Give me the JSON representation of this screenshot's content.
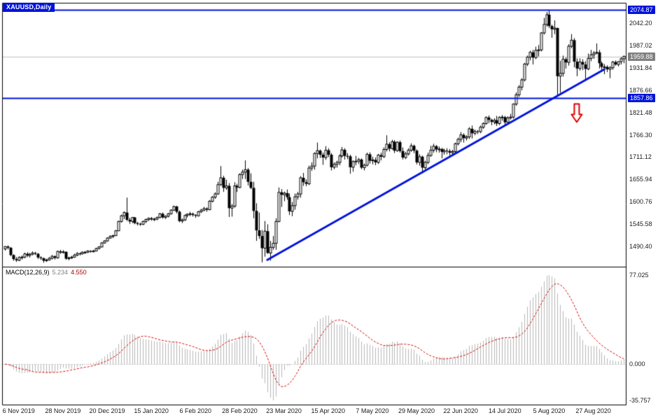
{
  "window": {
    "symbol_label": "XAUUSD,Daily"
  },
  "indicator_label": {
    "name": "MACD(12,26,9)",
    "main_value": "5.234",
    "signal_value": "4.550"
  },
  "colors": {
    "accent_blue": "#0013d8",
    "arrow_red": "#e00000",
    "signal_red": "#d40000",
    "histogram_gray": "#b6b6b6",
    "bid_line_gray": "#c0c0c0",
    "bid_label_gray": "#808080",
    "candle_outline": "#000000",
    "candle_up_fill": "#ffffff",
    "candle_down_fill": "#000000",
    "panel_border": "#000000"
  },
  "chart_data": {
    "type": "candlestick",
    "title": "XAUUSD,Daily",
    "symbol": "XAUUSD",
    "timeframe": "Daily",
    "x_tick_labels": [
      "6 Nov 2019",
      "28 Nov 2019",
      "20 Dec 2019",
      "15 Jan 2020",
      "6 Feb 2020",
      "28 Feb 2020",
      "23 Mar 2020",
      "15 Apr 2020",
      "7 May 2020",
      "29 May 2020",
      "22 Jun 2020",
      "14 Jul 2020",
      "5 Aug 2020",
      "27 Aug 2020"
    ],
    "x_tick_start_index": 5,
    "x_tick_step": 16,
    "y_axis": {
      "max": 2092.4,
      "min": 1440.2,
      "ticks": [
        2042.2,
        1987.02,
        1931.84,
        1876.66,
        1821.48,
        1766.3,
        1711.12,
        1655.94,
        1600.76,
        1545.58,
        1490.4
      ]
    },
    "special_levels": {
      "resistance": {
        "price": 2074.87,
        "label": "2074.87"
      },
      "bid": {
        "price": 1959.88,
        "label": "1959.88"
      },
      "support": {
        "price": 1857.86,
        "label": "1857.86"
      }
    },
    "trendline": {
      "from_index": 95,
      "from_price": 1457,
      "to_index": 217,
      "to_price": 1928
    },
    "arrow": {
      "index": 207,
      "price": 1820,
      "direction": "down"
    },
    "macd": {
      "fast": 12,
      "slow": 26,
      "signal": 9,
      "axis_labels": [
        "77.025",
        "0.000",
        "-35.757"
      ]
    },
    "candles": [
      [
        1484,
        1491,
        1480,
        1490
      ],
      [
        1490,
        1493,
        1483,
        1487
      ],
      [
        1487,
        1489,
        1466,
        1469
      ],
      [
        1469,
        1471,
        1455,
        1459
      ],
      [
        1459,
        1464,
        1452,
        1456
      ],
      [
        1456,
        1466,
        1454,
        1463
      ],
      [
        1463,
        1468,
        1458,
        1464
      ],
      [
        1464,
        1475,
        1461,
        1472
      ],
      [
        1472,
        1476,
        1464,
        1468
      ],
      [
        1468,
        1474,
        1463,
        1471
      ],
      [
        1471,
        1478,
        1468,
        1474
      ],
      [
        1474,
        1477,
        1469,
        1472
      ],
      [
        1472,
        1474,
        1459,
        1463
      ],
      [
        1463,
        1466,
        1457,
        1461
      ],
      [
        1461,
        1463,
        1450,
        1455
      ],
      [
        1455,
        1460,
        1452,
        1457
      ],
      [
        1457,
        1464,
        1455,
        1461
      ],
      [
        1461,
        1469,
        1458,
        1466
      ],
      [
        1466,
        1468,
        1458,
        1462
      ],
      [
        1462,
        1480,
        1460,
        1478
      ],
      [
        1478,
        1482,
        1472,
        1475
      ],
      [
        1475,
        1481,
        1473,
        1477
      ],
      [
        1477,
        1478,
        1457,
        1460
      ],
      [
        1460,
        1465,
        1456,
        1462
      ],
      [
        1462,
        1467,
        1459,
        1464
      ],
      [
        1464,
        1472,
        1462,
        1469
      ],
      [
        1469,
        1476,
        1466,
        1473
      ],
      [
        1473,
        1475,
        1468,
        1472
      ],
      [
        1472,
        1478,
        1470,
        1476
      ],
      [
        1476,
        1479,
        1472,
        1476
      ],
      [
        1476,
        1481,
        1474,
        1479
      ],
      [
        1479,
        1481,
        1475,
        1477
      ],
      [
        1477,
        1482,
        1476,
        1479
      ],
      [
        1479,
        1487,
        1478,
        1485
      ],
      [
        1485,
        1491,
        1483,
        1489
      ],
      [
        1489,
        1501,
        1488,
        1499
      ],
      [
        1499,
        1506,
        1497,
        1504
      ],
      [
        1504,
        1513,
        1502,
        1511
      ],
      [
        1511,
        1518,
        1509,
        1515
      ],
      [
        1515,
        1519,
        1511,
        1517
      ],
      [
        1517,
        1531,
        1516,
        1529
      ],
      [
        1529,
        1554,
        1528,
        1552
      ],
      [
        1552,
        1569,
        1549,
        1566
      ],
      [
        1566,
        1577,
        1558,
        1574
      ],
      [
        1574,
        1611,
        1553,
        1556
      ],
      [
        1556,
        1561,
        1546,
        1552
      ],
      [
        1552,
        1563,
        1548,
        1562
      ],
      [
        1562,
        1563,
        1545,
        1548
      ],
      [
        1548,
        1551,
        1542,
        1546
      ],
      [
        1546,
        1549,
        1541,
        1545
      ],
      [
        1545,
        1554,
        1543,
        1552
      ],
      [
        1552,
        1559,
        1548,
        1557
      ],
      [
        1557,
        1562,
        1553,
        1560
      ],
      [
        1560,
        1563,
        1554,
        1557
      ],
      [
        1557,
        1561,
        1553,
        1558
      ],
      [
        1558,
        1564,
        1555,
        1562
      ],
      [
        1562,
        1573,
        1560,
        1571
      ],
      [
        1571,
        1574,
        1559,
        1562
      ],
      [
        1562,
        1567,
        1558,
        1565
      ],
      [
        1565,
        1573,
        1562,
        1571
      ],
      [
        1571,
        1582,
        1569,
        1580
      ],
      [
        1580,
        1591,
        1578,
        1589
      ],
      [
        1589,
        1591,
        1572,
        1576
      ],
      [
        1576,
        1579,
        1550,
        1553
      ],
      [
        1553,
        1559,
        1548,
        1556
      ],
      [
        1556,
        1569,
        1553,
        1567
      ],
      [
        1567,
        1572,
        1562,
        1570
      ],
      [
        1570,
        1576,
        1565,
        1571
      ],
      [
        1571,
        1574,
        1564,
        1568
      ],
      [
        1568,
        1570,
        1561,
        1566
      ],
      [
        1566,
        1578,
        1564,
        1576
      ],
      [
        1576,
        1583,
        1573,
        1580
      ],
      [
        1580,
        1588,
        1577,
        1584
      ],
      [
        1584,
        1587,
        1576,
        1581
      ],
      [
        1581,
        1605,
        1580,
        1602
      ],
      [
        1602,
        1615,
        1599,
        1612
      ],
      [
        1612,
        1624,
        1608,
        1620
      ],
      [
        1620,
        1650,
        1618,
        1643
      ],
      [
        1643,
        1689,
        1640,
        1660
      ],
      [
        1660,
        1665,
        1625,
        1635
      ],
      [
        1635,
        1655,
        1630,
        1640
      ],
      [
        1640,
        1647,
        1563,
        1585
      ],
      [
        1585,
        1595,
        1564,
        1590
      ],
      [
        1590,
        1649,
        1586,
        1640
      ],
      [
        1640,
        1645,
        1625,
        1636
      ],
      [
        1636,
        1671,
        1634,
        1668
      ],
      [
        1668,
        1680,
        1657,
        1674
      ],
      [
        1674,
        1703,
        1657,
        1680
      ],
      [
        1680,
        1684,
        1641,
        1650
      ],
      [
        1650,
        1671,
        1632,
        1635
      ],
      [
        1635,
        1650,
        1560,
        1578
      ],
      [
        1578,
        1597,
        1504,
        1530
      ],
      [
        1530,
        1574,
        1509,
        1516
      ],
      [
        1516,
        1531,
        1451,
        1486
      ],
      [
        1486,
        1553,
        1465,
        1528
      ],
      [
        1528,
        1545,
        1472,
        1474
      ],
      [
        1474,
        1504,
        1455,
        1488
      ],
      [
        1488,
        1516,
        1482,
        1498
      ],
      [
        1498,
        1560,
        1482,
        1552
      ],
      [
        1552,
        1636,
        1550,
        1624
      ],
      [
        1624,
        1632,
        1588,
        1618
      ],
      [
        1618,
        1626,
        1602,
        1622
      ],
      [
        1622,
        1631,
        1606,
        1612
      ],
      [
        1612,
        1621,
        1568,
        1577
      ],
      [
        1577,
        1600,
        1565,
        1591
      ],
      [
        1591,
        1621,
        1581,
        1613
      ],
      [
        1613,
        1625,
        1606,
        1620
      ],
      [
        1620,
        1664,
        1611,
        1660
      ],
      [
        1660,
        1672,
        1640,
        1649
      ],
      [
        1649,
        1656,
        1639,
        1645
      ],
      [
        1645,
        1690,
        1642,
        1684
      ],
      [
        1684,
        1698,
        1677,
        1689
      ],
      [
        1689,
        1723,
        1680,
        1720
      ],
      [
        1720,
        1747,
        1708,
        1727
      ],
      [
        1727,
        1730,
        1709,
        1717
      ],
      [
        1717,
        1722,
        1692,
        1710
      ],
      [
        1710,
        1738,
        1704,
        1728
      ],
      [
        1728,
        1733,
        1711,
        1717
      ],
      [
        1717,
        1721,
        1678,
        1686
      ],
      [
        1686,
        1698,
        1681,
        1693
      ],
      [
        1693,
        1702,
        1685,
        1698
      ],
      [
        1698,
        1718,
        1691,
        1714
      ],
      [
        1714,
        1736,
        1710,
        1729
      ],
      [
        1729,
        1733,
        1705,
        1714
      ],
      [
        1714,
        1721,
        1706,
        1713
      ],
      [
        1713,
        1717,
        1670,
        1686
      ],
      [
        1686,
        1703,
        1675,
        1700
      ],
      [
        1700,
        1714,
        1691,
        1701
      ],
      [
        1701,
        1709,
        1694,
        1705
      ],
      [
        1705,
        1708,
        1681,
        1685
      ],
      [
        1685,
        1695,
        1678,
        1691
      ],
      [
        1691,
        1722,
        1688,
        1718
      ],
      [
        1718,
        1723,
        1695,
        1702
      ],
      [
        1702,
        1712,
        1693,
        1704
      ],
      [
        1704,
        1710,
        1691,
        1698
      ],
      [
        1698,
        1719,
        1694,
        1716
      ],
      [
        1716,
        1722,
        1703,
        1712
      ],
      [
        1712,
        1735,
        1709,
        1730
      ],
      [
        1730,
        1765,
        1725,
        1743
      ],
      [
        1743,
        1748,
        1725,
        1732
      ],
      [
        1732,
        1754,
        1730,
        1749
      ],
      [
        1749,
        1753,
        1721,
        1727
      ],
      [
        1727,
        1750,
        1724,
        1748
      ],
      [
        1748,
        1752,
        1722,
        1726
      ],
      [
        1726,
        1735,
        1705,
        1710
      ],
      [
        1710,
        1724,
        1706,
        1719
      ],
      [
        1719,
        1733,
        1715,
        1728
      ],
      [
        1728,
        1745,
        1724,
        1739
      ],
      [
        1739,
        1742,
        1721,
        1727
      ],
      [
        1727,
        1730,
        1693,
        1698
      ],
      [
        1698,
        1718,
        1690,
        1712
      ],
      [
        1712,
        1715,
        1671,
        1685
      ],
      [
        1685,
        1702,
        1681,
        1698
      ],
      [
        1698,
        1722,
        1694,
        1715
      ],
      [
        1715,
        1739,
        1712,
        1728
      ],
      [
        1728,
        1744,
        1722,
        1738
      ],
      [
        1738,
        1741,
        1723,
        1730
      ],
      [
        1730,
        1737,
        1722,
        1731
      ],
      [
        1731,
        1734,
        1708,
        1724
      ],
      [
        1724,
        1732,
        1717,
        1727
      ],
      [
        1727,
        1733,
        1718,
        1726
      ],
      [
        1726,
        1731,
        1715,
        1722
      ],
      [
        1722,
        1729,
        1716,
        1725
      ],
      [
        1725,
        1747,
        1721,
        1744
      ],
      [
        1744,
        1759,
        1740,
        1755
      ],
      [
        1755,
        1773,
        1748,
        1766
      ],
      [
        1766,
        1770,
        1747,
        1758
      ],
      [
        1758,
        1765,
        1752,
        1761
      ],
      [
        1761,
        1785,
        1756,
        1781
      ],
      [
        1781,
        1789,
        1757,
        1770
      ],
      [
        1770,
        1779,
        1765,
        1775
      ],
      [
        1775,
        1778,
        1768,
        1774
      ],
      [
        1774,
        1789,
        1770,
        1785
      ],
      [
        1785,
        1797,
        1781,
        1794
      ],
      [
        1794,
        1812,
        1791,
        1809
      ],
      [
        1809,
        1814,
        1795,
        1803
      ],
      [
        1803,
        1806,
        1790,
        1798
      ],
      [
        1798,
        1807,
        1792,
        1802
      ],
      [
        1802,
        1813,
        1788,
        1794
      ],
      [
        1794,
        1812,
        1790,
        1809
      ],
      [
        1809,
        1815,
        1801,
        1810
      ],
      [
        1810,
        1813,
        1789,
        1797
      ],
      [
        1797,
        1812,
        1794,
        1808
      ],
      [
        1808,
        1818,
        1804,
        1810
      ],
      [
        1810,
        1844,
        1806,
        1842
      ],
      [
        1842,
        1871,
        1838,
        1865
      ],
      [
        1865,
        1889,
        1860,
        1884
      ],
      [
        1884,
        1906,
        1876,
        1902
      ],
      [
        1902,
        1944,
        1898,
        1941
      ],
      [
        1941,
        1962,
        1936,
        1958
      ],
      [
        1958,
        1974,
        1950,
        1970
      ],
      [
        1970,
        1976,
        1940,
        1957
      ],
      [
        1957,
        1984,
        1953,
        1975
      ],
      [
        1975,
        1988,
        1960,
        1976
      ],
      [
        1976,
        2020,
        1972,
        2018
      ],
      [
        2018,
        2055,
        2014,
        2039
      ],
      [
        2039,
        2070,
        2034,
        2063
      ],
      [
        2063,
        2075,
        2030,
        2035
      ],
      [
        2035,
        2038,
        2006,
        2027
      ],
      [
        2027,
        2049,
        2015,
        2030
      ],
      [
        2030,
        2031,
        1863,
        1911
      ],
      [
        1911,
        1949,
        1870,
        1918
      ],
      [
        1918,
        1962,
        1910,
        1953
      ],
      [
        1953,
        1957,
        1930,
        1945
      ],
      [
        1945,
        1990,
        1937,
        1985
      ],
      [
        1985,
        2015,
        1980,
        2000
      ],
      [
        2000,
        2005,
        1933,
        1947
      ],
      [
        1947,
        1955,
        1911,
        1930
      ],
      [
        1930,
        1955,
        1925,
        1946
      ],
      [
        1946,
        1953,
        1926,
        1940
      ],
      [
        1940,
        1948,
        1903,
        1929
      ],
      [
        1929,
        1967,
        1926,
        1955
      ],
      [
        1955,
        1976,
        1948,
        1964
      ],
      [
        1964,
        1973,
        1954,
        1968
      ],
      [
        1968,
        1992,
        1965,
        1970
      ],
      [
        1970,
        1976,
        1930,
        1943
      ],
      [
        1943,
        1947,
        1922,
        1934
      ],
      [
        1934,
        1941,
        1916,
        1934
      ],
      [
        1934,
        1938,
        1921,
        1928
      ],
      [
        1928,
        1936,
        1906,
        1932
      ],
      [
        1932,
        1949,
        1927,
        1946
      ],
      [
        1946,
        1950,
        1937,
        1940
      ],
      [
        1940,
        1948,
        1935,
        1947
      ],
      [
        1947,
        1958,
        1940,
        1954
      ],
      [
        1954,
        1962,
        1943,
        1960
      ]
    ]
  }
}
